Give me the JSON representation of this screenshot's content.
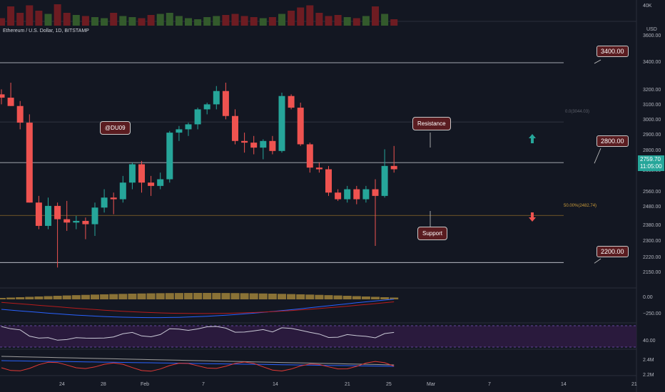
{
  "header": {
    "symbol_line": "Ethereum / U.S. Dollar, 1D, BITSTAMP"
  },
  "currency": "USD",
  "volume_axis_label": "40K",
  "price_axis": {
    "ticks": [
      "3600.00",
      "3400.00",
      "3200.00",
      "3100.00",
      "3000.00",
      "2900.00",
      "2800.00",
      "2680.00",
      "2560.00",
      "2480.00",
      "2380.00",
      "2300.00",
      "2220.00",
      "2150.00"
    ],
    "current_price": "2759.70",
    "countdown": "11:05:00"
  },
  "levels": {
    "upper": "3400.00",
    "middle": "2800.00",
    "lower": "2200.00",
    "fib_upper": "0.0(3044.03)",
    "fib_mid": "50.00%(2482.74)"
  },
  "annotations": {
    "username": "@DU09",
    "resistance": "Resistance",
    "support": "Support"
  },
  "macd_axis": [
    "0.00",
    "−250.00"
  ],
  "rsi_axis": [
    "40.00"
  ],
  "obv_axis": [
    "2.4M",
    "2.2M"
  ],
  "x_axis": [
    "24",
    "28",
    "Feb",
    "7",
    "14",
    "21",
    "25",
    "Mar",
    "7",
    "14",
    "21"
  ],
  "colors": {
    "bg": "#131722",
    "up": "#26a69a",
    "down": "#ef5350",
    "label_bg": "#5a1c20"
  },
  "chart_data": {
    "type": "candlestick",
    "xlabel": "",
    "ylabel": "",
    "ylim": [
      2140,
      3620
    ],
    "candles": [
      {
        "o": 3210,
        "h": 3240,
        "l": 3150,
        "c": 3190
      },
      {
        "o": 3190,
        "h": 3280,
        "l": 3140,
        "c": 3140
      },
      {
        "o": 3140,
        "h": 3170,
        "l": 3000,
        "c": 3040
      },
      {
        "o": 3040,
        "h": 3090,
        "l": 2560,
        "c": 2560
      },
      {
        "o": 2560,
        "h": 2600,
        "l": 2400,
        "c": 2420
      },
      {
        "o": 2420,
        "h": 2590,
        "l": 2400,
        "c": 2540
      },
      {
        "o": 2540,
        "h": 2560,
        "l": 2170,
        "c": 2460
      },
      {
        "o": 2460,
        "h": 2570,
        "l": 2390,
        "c": 2440
      },
      {
        "o": 2440,
        "h": 2480,
        "l": 2400,
        "c": 2450
      },
      {
        "o": 2450,
        "h": 2470,
        "l": 2340,
        "c": 2430
      },
      {
        "o": 2430,
        "h": 2560,
        "l": 2360,
        "c": 2530
      },
      {
        "o": 2530,
        "h": 2640,
        "l": 2500,
        "c": 2590
      },
      {
        "o": 2590,
        "h": 2620,
        "l": 2490,
        "c": 2580
      },
      {
        "o": 2580,
        "h": 2720,
        "l": 2560,
        "c": 2680
      },
      {
        "o": 2680,
        "h": 2800,
        "l": 2640,
        "c": 2790
      },
      {
        "o": 2790,
        "h": 2810,
        "l": 2620,
        "c": 2680
      },
      {
        "o": 2680,
        "h": 2720,
        "l": 2600,
        "c": 2660
      },
      {
        "o": 2660,
        "h": 2740,
        "l": 2640,
        "c": 2700
      },
      {
        "o": 2700,
        "h": 2990,
        "l": 2680,
        "c": 2980
      },
      {
        "o": 2980,
        "h": 3020,
        "l": 2930,
        "c": 3000
      },
      {
        "o": 3000,
        "h": 3040,
        "l": 2960,
        "c": 3030
      },
      {
        "o": 3030,
        "h": 3130,
        "l": 3000,
        "c": 3120
      },
      {
        "o": 3120,
        "h": 3160,
        "l": 3090,
        "c": 3150
      },
      {
        "o": 3150,
        "h": 3260,
        "l": 3120,
        "c": 3230
      },
      {
        "o": 3230,
        "h": 3280,
        "l": 3060,
        "c": 3080
      },
      {
        "o": 3080,
        "h": 3120,
        "l": 2910,
        "c": 2930
      },
      {
        "o": 2930,
        "h": 2980,
        "l": 2860,
        "c": 2920
      },
      {
        "o": 2920,
        "h": 2960,
        "l": 2850,
        "c": 2890
      },
      {
        "o": 2890,
        "h": 2940,
        "l": 2820,
        "c": 2930
      },
      {
        "o": 2930,
        "h": 2960,
        "l": 2850,
        "c": 2870
      },
      {
        "o": 2870,
        "h": 3220,
        "l": 2860,
        "c": 3200
      },
      {
        "o": 3200,
        "h": 3210,
        "l": 3120,
        "c": 3130
      },
      {
        "o": 3130,
        "h": 3160,
        "l": 2900,
        "c": 2910
      },
      {
        "o": 2910,
        "h": 2920,
        "l": 2740,
        "c": 2770
      },
      {
        "o": 2770,
        "h": 2800,
        "l": 2740,
        "c": 2760
      },
      {
        "o": 2760,
        "h": 2780,
        "l": 2600,
        "c": 2620
      },
      {
        "o": 2620,
        "h": 2640,
        "l": 2570,
        "c": 2580
      },
      {
        "o": 2580,
        "h": 2660,
        "l": 2560,
        "c": 2640
      },
      {
        "o": 2640,
        "h": 2660,
        "l": 2550,
        "c": 2580
      },
      {
        "o": 2580,
        "h": 2660,
        "l": 2560,
        "c": 2640
      },
      {
        "o": 2640,
        "h": 2700,
        "l": 2300,
        "c": 2600
      },
      {
        "o": 2600,
        "h": 2880,
        "l": 2590,
        "c": 2780
      },
      {
        "o": 2780,
        "h": 2900,
        "l": 2740,
        "c": 2760
      }
    ],
    "volume": [
      0.35,
      0.9,
      0.6,
      0.95,
      0.7,
      0.55,
      1.0,
      0.6,
      0.5,
      0.45,
      0.4,
      0.35,
      0.6,
      0.45,
      0.4,
      0.35,
      0.5,
      0.55,
      0.6,
      0.45,
      0.35,
      0.3,
      0.4,
      0.45,
      0.5,
      0.55,
      0.45,
      0.4,
      0.35,
      0.4,
      0.55,
      0.7,
      0.85,
      0.95,
      0.6,
      0.45,
      0.5,
      0.4,
      0.35,
      0.45,
      0.9,
      0.55,
      0.3
    ]
  }
}
